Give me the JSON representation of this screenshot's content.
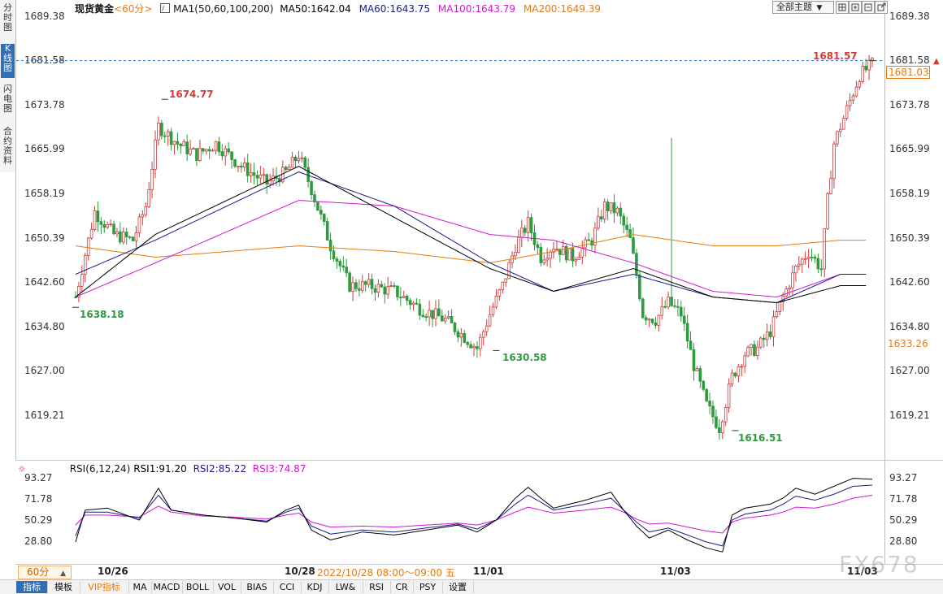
{
  "left_tabs": [
    "分时图",
    "K线图",
    "闪电图",
    "合约资料"
  ],
  "header": {
    "symbol": "现货黄金",
    "period": "<60分>",
    "ma_label": "MA1(50,60,100,200)",
    "ma50": "MA50:1642.04",
    "ma60": "MA60:1643.75",
    "ma100": "MA100:1643.79",
    "ma200": "MA200:1649.39",
    "theme_select": "全部主题"
  },
  "rsi_header": {
    "label": "RSI(6,12,24)",
    "rsi1": "RSI1:91.20",
    "rsi2": "RSI2:85.22",
    "rsi3": "RSI3:74.87"
  },
  "bottom": {
    "period_select": "60分",
    "date_labels": [
      "10/26",
      "10/28",
      "11/01",
      "11/03",
      "11/03"
    ],
    "last_date": "11/03",
    "tooltip_time": "2022/10/28 08:00～09:00 五",
    "watermark": "FX678"
  },
  "toolbar": [
    "指标",
    "模板",
    "VIP指标",
    "MA",
    "MACD",
    "BOLL",
    "VOL",
    "BIAS",
    "CCI",
    "KDJ",
    "LW&",
    "RSI",
    "CR",
    "PSY",
    "设置"
  ],
  "colors": {
    "up": "#d23b3b",
    "down": "#2e9b3e",
    "ma50": "#000000",
    "ma60": "#1a1a8c",
    "ma100": "#d017d0",
    "ma200": "#e87b10",
    "rsi1": "#000000",
    "rsi2": "#1a1a8c",
    "rsi3": "#d017d0"
  },
  "chart_data": [
    {
      "type": "candlestick",
      "title": "现货黄金 <60分>",
      "ylim": [
        1616.51,
        1689.38
      ],
      "yticks": [
        "1689.38",
        "1681.58",
        "1673.78",
        "1665.99",
        "1658.19",
        "1650.39",
        "1642.60",
        "1634.80",
        "1627.00",
        "1619.21"
      ],
      "current_price": "1681.58",
      "current_price_label": "1681.03",
      "crosshair_label": "1633.26",
      "annotations": [
        {
          "text": "1674.77",
          "kind": "high"
        },
        {
          "text": "1638.18",
          "kind": "low"
        },
        {
          "text": "1630.58",
          "kind": "low"
        },
        {
          "text": "1616.51",
          "kind": "low"
        },
        {
          "text": "1681.57",
          "kind": "high"
        }
      ],
      "candle_anchors": [
        [
          0,
          1640
        ],
        [
          6,
          1655
        ],
        [
          12,
          1651
        ],
        [
          18,
          1650
        ],
        [
          22,
          1656
        ],
        [
          26,
          1670
        ],
        [
          32,
          1667
        ],
        [
          38,
          1665
        ],
        [
          44,
          1667
        ],
        [
          52,
          1663
        ],
        [
          60,
          1660
        ],
        [
          66,
          1662
        ],
        [
          70,
          1665
        ],
        [
          74,
          1659
        ],
        [
          80,
          1649
        ],
        [
          86,
          1642
        ],
        [
          92,
          1642
        ],
        [
          100,
          1641
        ],
        [
          108,
          1638
        ],
        [
          116,
          1636
        ],
        [
          122,
          1633
        ],
        [
          126,
          1631
        ],
        [
          130,
          1637
        ],
        [
          134,
          1642
        ],
        [
          138,
          1649
        ],
        [
          142,
          1653
        ],
        [
          146,
          1647
        ],
        [
          150,
          1649
        ],
        [
          156,
          1647
        ],
        [
          162,
          1650
        ],
        [
          166,
          1656
        ],
        [
          170,
          1655
        ],
        [
          174,
          1650
        ],
        [
          176,
          1644
        ],
        [
          178,
          1637
        ],
        [
          182,
          1636
        ],
        [
          186,
          1639
        ],
        [
          190,
          1637
        ],
        [
          194,
          1628
        ],
        [
          198,
          1621
        ],
        [
          202,
          1617
        ],
        [
          206,
          1626
        ],
        [
          210,
          1630
        ],
        [
          214,
          1631
        ],
        [
          218,
          1634
        ],
        [
          222,
          1640
        ],
        [
          226,
          1645
        ],
        [
          230,
          1648
        ],
        [
          234,
          1645
        ],
        [
          236,
          1657
        ],
        [
          238,
          1667
        ],
        [
          242,
          1673
        ],
        [
          246,
          1679
        ],
        [
          250,
          1681
        ]
      ],
      "ma50_anchors": [
        [
          0,
          1640
        ],
        [
          25,
          1651
        ],
        [
          70,
          1663
        ],
        [
          100,
          1654
        ],
        [
          130,
          1645
        ],
        [
          150,
          1641
        ],
        [
          175,
          1645
        ],
        [
          200,
          1640
        ],
        [
          220,
          1639
        ],
        [
          240,
          1642
        ]
      ],
      "ma60_anchors": [
        [
          0,
          1644
        ],
        [
          25,
          1650
        ],
        [
          70,
          1662
        ],
        [
          100,
          1656
        ],
        [
          130,
          1646
        ],
        [
          150,
          1641
        ],
        [
          175,
          1644
        ],
        [
          200,
          1640
        ],
        [
          220,
          1639
        ],
        [
          240,
          1644
        ]
      ],
      "ma100_anchors": [
        [
          0,
          1640
        ],
        [
          25,
          1646
        ],
        [
          70,
          1657
        ],
        [
          100,
          1656
        ],
        [
          130,
          1651
        ],
        [
          150,
          1650
        ],
        [
          175,
          1646
        ],
        [
          200,
          1641
        ],
        [
          220,
          1640
        ],
        [
          240,
          1644
        ]
      ],
      "ma200_anchors": [
        [
          0,
          1649
        ],
        [
          25,
          1647
        ],
        [
          70,
          1649
        ],
        [
          100,
          1648
        ],
        [
          130,
          1646
        ],
        [
          150,
          1648
        ],
        [
          175,
          1651
        ],
        [
          200,
          1649
        ],
        [
          220,
          1649
        ],
        [
          240,
          1650
        ]
      ]
    },
    {
      "type": "line",
      "title": "RSI(6,12,24)",
      "ylim": [
        20,
        100
      ],
      "yticks": [
        "93.27",
        "71.78",
        "50.29",
        "28.80"
      ],
      "rsi1_anchors": [
        [
          0,
          28
        ],
        [
          3,
          60
        ],
        [
          10,
          62
        ],
        [
          20,
          50
        ],
        [
          26,
          82
        ],
        [
          30,
          60
        ],
        [
          40,
          55
        ],
        [
          50,
          52
        ],
        [
          60,
          48
        ],
        [
          66,
          60
        ],
        [
          70,
          65
        ],
        [
          74,
          40
        ],
        [
          80,
          30
        ],
        [
          90,
          38
        ],
        [
          100,
          35
        ],
        [
          110,
          40
        ],
        [
          120,
          45
        ],
        [
          126,
          38
        ],
        [
          132,
          50
        ],
        [
          138,
          72
        ],
        [
          142,
          83
        ],
        [
          146,
          72
        ],
        [
          150,
          62
        ],
        [
          160,
          70
        ],
        [
          168,
          78
        ],
        [
          172,
          60
        ],
        [
          176,
          44
        ],
        [
          180,
          32
        ],
        [
          186,
          40
        ],
        [
          192,
          30
        ],
        [
          198,
          22
        ],
        [
          203,
          18
        ],
        [
          206,
          55
        ],
        [
          210,
          62
        ],
        [
          218,
          66
        ],
        [
          222,
          72
        ],
        [
          226,
          82
        ],
        [
          232,
          76
        ],
        [
          238,
          84
        ],
        [
          244,
          92
        ],
        [
          250,
          91
        ]
      ],
      "rsi2_anchors": [
        [
          0,
          34
        ],
        [
          3,
          58
        ],
        [
          10,
          58
        ],
        [
          20,
          52
        ],
        [
          26,
          75
        ],
        [
          30,
          60
        ],
        [
          40,
          55
        ],
        [
          50,
          52
        ],
        [
          60,
          49
        ],
        [
          66,
          58
        ],
        [
          70,
          62
        ],
        [
          74,
          44
        ],
        [
          80,
          36
        ],
        [
          90,
          40
        ],
        [
          100,
          38
        ],
        [
          110,
          42
        ],
        [
          120,
          46
        ],
        [
          126,
          41
        ],
        [
          132,
          50
        ],
        [
          138,
          66
        ],
        [
          142,
          75
        ],
        [
          146,
          68
        ],
        [
          150,
          60
        ],
        [
          160,
          66
        ],
        [
          168,
          72
        ],
        [
          172,
          60
        ],
        [
          176,
          48
        ],
        [
          180,
          38
        ],
        [
          186,
          42
        ],
        [
          192,
          35
        ],
        [
          198,
          28
        ],
        [
          203,
          24
        ],
        [
          206,
          50
        ],
        [
          210,
          56
        ],
        [
          218,
          60
        ],
        [
          222,
          66
        ],
        [
          226,
          74
        ],
        [
          232,
          70
        ],
        [
          238,
          76
        ],
        [
          244,
          84
        ],
        [
          250,
          85
        ]
      ],
      "rsi3_anchors": [
        [
          0,
          45
        ],
        [
          3,
          55
        ],
        [
          10,
          55
        ],
        [
          20,
          53
        ],
        [
          26,
          64
        ],
        [
          30,
          58
        ],
        [
          40,
          54
        ],
        [
          50,
          53
        ],
        [
          60,
          51
        ],
        [
          66,
          55
        ],
        [
          70,
          57
        ],
        [
          74,
          48
        ],
        [
          80,
          43
        ],
        [
          90,
          44
        ],
        [
          100,
          43
        ],
        [
          110,
          45
        ],
        [
          120,
          47
        ],
        [
          126,
          45
        ],
        [
          132,
          50
        ],
        [
          138,
          58
        ],
        [
          142,
          63
        ],
        [
          146,
          60
        ],
        [
          150,
          57
        ],
        [
          160,
          60
        ],
        [
          168,
          63
        ],
        [
          172,
          58
        ],
        [
          176,
          51
        ],
        [
          180,
          46
        ],
        [
          186,
          47
        ],
        [
          192,
          43
        ],
        [
          198,
          39
        ],
        [
          203,
          37
        ],
        [
          206,
          48
        ],
        [
          210,
          52
        ],
        [
          218,
          55
        ],
        [
          222,
          58
        ],
        [
          226,
          63
        ],
        [
          232,
          62
        ],
        [
          238,
          66
        ],
        [
          244,
          72
        ],
        [
          250,
          75
        ]
      ]
    }
  ]
}
